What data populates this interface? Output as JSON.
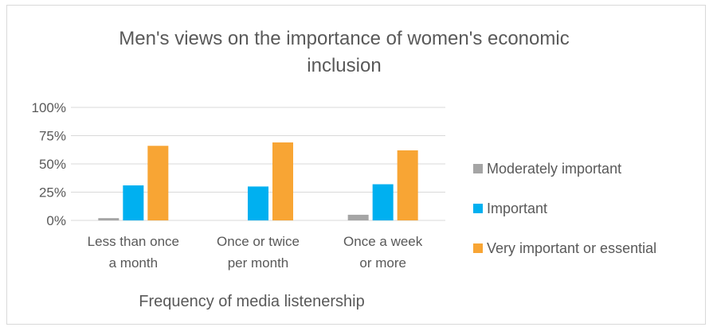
{
  "chart_data": {
    "type": "bar",
    "title_lines": [
      "Men's views on the importance of women's economic",
      "inclusion"
    ],
    "xlabel": "Frequency of media listenership",
    "ylabel": "",
    "categories": [
      [
        "Less than once",
        "a month"
      ],
      [
        "Once or twice",
        "per month"
      ],
      [
        "Once a week",
        "or more"
      ]
    ],
    "series": [
      {
        "name": "Moderately important",
        "color": "#a5a5a5",
        "values": [
          2,
          0,
          5
        ]
      },
      {
        "name": "Important",
        "color": "#00b0f0",
        "values": [
          31,
          30,
          32
        ]
      },
      {
        "name": "Very important or essential",
        "color": "#f8a534",
        "values": [
          66,
          69,
          62
        ]
      }
    ],
    "ylim": [
      0,
      100
    ],
    "yticks": [
      "0%",
      "25%",
      "50%",
      "75%",
      "100%"
    ],
    "grid": true,
    "legend_position": "right"
  }
}
